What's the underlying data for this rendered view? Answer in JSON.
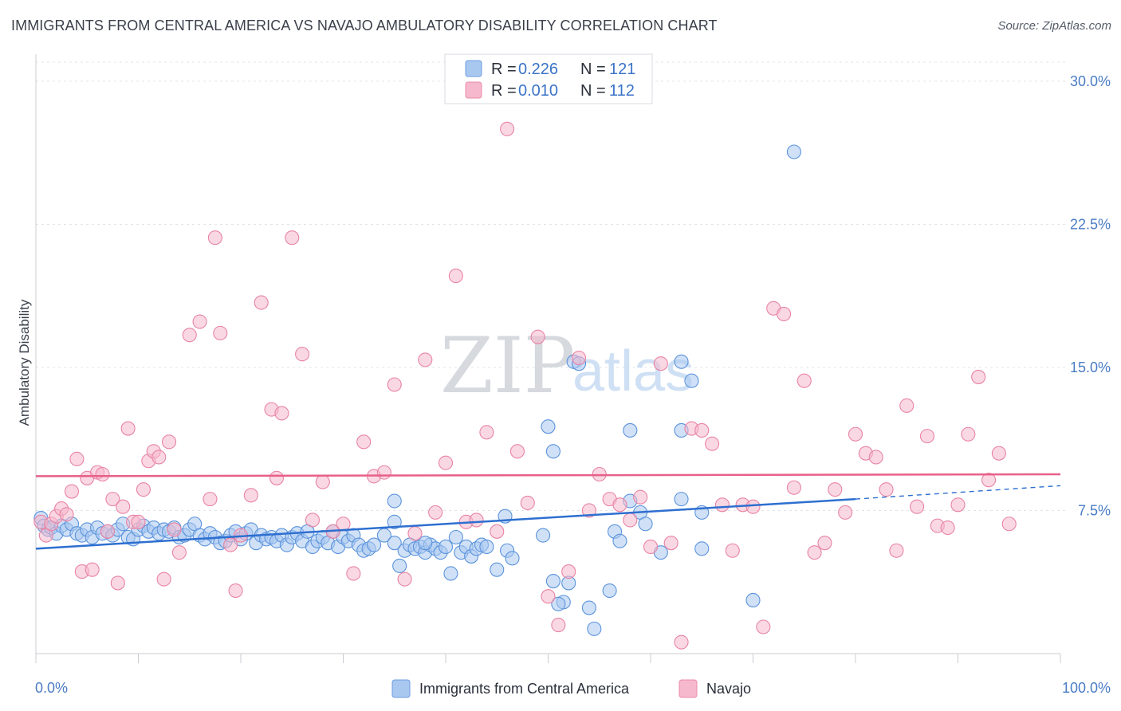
{
  "title": "IMMIGRANTS FROM CENTRAL AMERICA VS NAVAJO AMBULATORY DISABILITY CORRELATION CHART",
  "source": "Source: ZipAtlas.com",
  "watermark": {
    "zip": "ZIP",
    "atlas": "atlas"
  },
  "legend": {
    "rows": [
      {
        "r_label": "R =",
        "r_value": "0.226",
        "n_label": "N =",
        "n_value": "121",
        "color": "#a9c8f0"
      },
      {
        "r_label": "R =",
        "r_value": "0.010",
        "n_label": "N =",
        "n_value": "112",
        "color": "#f6b8cc"
      }
    ]
  },
  "bottom_legend": [
    {
      "label": "Immigrants from Central America",
      "color": "#a9c8f0"
    },
    {
      "label": "Navajo",
      "color": "#f6b8cc"
    }
  ],
  "chart_data": {
    "type": "scatter",
    "title": "IMMIGRANTS FROM CENTRAL AMERICA VS NAVAJO AMBULATORY DISABILITY CORRELATION CHART",
    "xlabel": "",
    "ylabel": "Ambulatory Disability",
    "xlim": [
      0,
      100
    ],
    "ylim": [
      0,
      31
    ],
    "x_ticks": [
      "0.0%",
      "100.0%"
    ],
    "y_ticks": [
      {
        "value": 7.5,
        "label": "7.5%"
      },
      {
        "value": 15.0,
        "label": "15.0%"
      },
      {
        "value": 22.5,
        "label": "22.5%"
      },
      {
        "value": 30.0,
        "label": "30.0%"
      }
    ],
    "grid": true,
    "legend_position": "top-center",
    "series": [
      {
        "name": "Immigrants from Central America",
        "color": "#5b93dc",
        "fill": "#a9c8f0",
        "trend": {
          "x": [
            0,
            80
          ],
          "y": [
            5.5,
            8.1
          ],
          "dashed_to": [
            100,
            8.8
          ],
          "color": "#2e6fd0"
        },
        "points": [
          [
            0.5,
            7.1
          ],
          [
            0.8,
            6.7
          ],
          [
            1.2,
            6.5
          ],
          [
            1.5,
            6.6
          ],
          [
            2,
            6.3
          ],
          [
            2.5,
            6.7
          ],
          [
            3,
            6.5
          ],
          [
            3.5,
            6.8
          ],
          [
            4,
            6.3
          ],
          [
            4.5,
            6.2
          ],
          [
            5,
            6.5
          ],
          [
            5.5,
            6.1
          ],
          [
            6,
            6.6
          ],
          [
            6.5,
            6.3
          ],
          [
            7,
            6.4
          ],
          [
            7.5,
            6.2
          ],
          [
            8,
            6.5
          ],
          [
            8.5,
            6.8
          ],
          [
            9,
            6.1
          ],
          [
            9.5,
            6.0
          ],
          [
            10,
            6.5
          ],
          [
            10.5,
            6.7
          ],
          [
            11,
            6.4
          ],
          [
            11.5,
            6.6
          ],
          [
            12,
            6.3
          ],
          [
            12.5,
            6.5
          ],
          [
            13,
            6.4
          ],
          [
            13.5,
            6.6
          ],
          [
            14,
            6.1
          ],
          [
            14.5,
            6.2
          ],
          [
            15,
            6.5
          ],
          [
            15.5,
            6.8
          ],
          [
            16,
            6.2
          ],
          [
            16.5,
            6.0
          ],
          [
            17,
            6.3
          ],
          [
            17.5,
            6.1
          ],
          [
            18,
            5.8
          ],
          [
            18.5,
            5.9
          ],
          [
            19,
            6.2
          ],
          [
            19.5,
            6.4
          ],
          [
            20,
            6.0
          ],
          [
            20.5,
            6.3
          ],
          [
            21,
            6.5
          ],
          [
            21.5,
            5.8
          ],
          [
            22,
            6.2
          ],
          [
            22.5,
            6.0
          ],
          [
            23,
            6.1
          ],
          [
            23.5,
            5.9
          ],
          [
            24,
            6.2
          ],
          [
            24.5,
            5.7
          ],
          [
            25,
            6.1
          ],
          [
            25.5,
            6.3
          ],
          [
            26,
            5.9
          ],
          [
            26.5,
            6.4
          ],
          [
            27,
            5.6
          ],
          [
            27.5,
            5.9
          ],
          [
            28,
            6.1
          ],
          [
            28.5,
            5.8
          ],
          [
            29,
            6.4
          ],
          [
            29.5,
            5.6
          ],
          [
            30,
            6.1
          ],
          [
            30.5,
            5.9
          ],
          [
            31,
            6.2
          ],
          [
            31.5,
            5.7
          ],
          [
            32,
            5.4
          ],
          [
            32.5,
            5.5
          ],
          [
            33,
            5.7
          ],
          [
            34,
            6.2
          ],
          [
            35,
            5.8
          ],
          [
            35.5,
            4.6
          ],
          [
            36,
            5.4
          ],
          [
            36.5,
            5.7
          ],
          [
            37,
            5.5
          ],
          [
            37.5,
            5.6
          ],
          [
            38,
            5.3
          ],
          [
            38.5,
            5.7
          ],
          [
            39,
            5.5
          ],
          [
            39.5,
            5.3
          ],
          [
            40,
            5.6
          ],
          [
            40.5,
            4.2
          ],
          [
            41,
            6.1
          ],
          [
            41.5,
            5.3
          ],
          [
            42,
            5.6
          ],
          [
            42.5,
            5.1
          ],
          [
            43,
            5.5
          ],
          [
            43.5,
            5.7
          ],
          [
            44,
            5.6
          ],
          [
            45,
            4.4
          ],
          [
            46,
            5.4
          ],
          [
            46.5,
            5.0
          ],
          [
            35,
            8.0
          ],
          [
            35,
            6.9
          ],
          [
            38,
            5.8
          ],
          [
            49.5,
            6.2
          ],
          [
            50.5,
            3.8
          ],
          [
            51.5,
            2.7
          ],
          [
            52,
            3.7
          ],
          [
            54,
            2.4
          ],
          [
            54.5,
            1.3
          ],
          [
            56,
            3.3
          ],
          [
            56.5,
            6.4
          ],
          [
            57,
            5.9
          ],
          [
            58,
            8.0
          ],
          [
            59,
            7.4
          ],
          [
            59.5,
            6.8
          ],
          [
            61,
            5.3
          ],
          [
            63,
            8.1
          ],
          [
            64,
            14.3
          ],
          [
            63,
            15.3
          ],
          [
            65,
            5.5
          ],
          [
            52.5,
            15.3
          ],
          [
            53,
            15.2
          ],
          [
            50,
            11.9
          ],
          [
            50.5,
            10.6
          ],
          [
            58,
            11.7
          ],
          [
            63,
            11.7
          ],
          [
            65,
            7.4
          ],
          [
            74,
            26.3
          ],
          [
            70,
            2.8
          ],
          [
            51,
            2.6
          ],
          [
            45.8,
            7.2
          ]
        ]
      },
      {
        "name": "Navajo",
        "color": "#e884a4",
        "fill": "#f6b8cc",
        "trend": {
          "x": [
            0,
            100
          ],
          "y": [
            9.3,
            9.4
          ],
          "color": "#e8608a"
        },
        "points": [
          [
            0.5,
            6.9
          ],
          [
            1,
            6.2
          ],
          [
            1.5,
            6.8
          ],
          [
            2,
            7.2
          ],
          [
            2.5,
            7.6
          ],
          [
            3,
            7.3
          ],
          [
            3.5,
            8.5
          ],
          [
            4,
            10.2
          ],
          [
            4.5,
            4.3
          ],
          [
            5,
            9.2
          ],
          [
            5.5,
            4.4
          ],
          [
            6,
            9.5
          ],
          [
            6.5,
            9.4
          ],
          [
            7,
            6.4
          ],
          [
            7.5,
            8.1
          ],
          [
            8,
            3.7
          ],
          [
            8.5,
            7.7
          ],
          [
            9,
            11.8
          ],
          [
            9.5,
            6.9
          ],
          [
            10,
            6.9
          ],
          [
            10.5,
            8.6
          ],
          [
            11,
            10.1
          ],
          [
            11.5,
            10.6
          ],
          [
            12,
            10.3
          ],
          [
            12.5,
            3.9
          ],
          [
            13,
            11.1
          ],
          [
            13.5,
            6.5
          ],
          [
            14,
            5.3
          ],
          [
            15,
            16.7
          ],
          [
            16,
            17.4
          ],
          [
            17,
            8.1
          ],
          [
            17.5,
            21.8
          ],
          [
            18,
            16.8
          ],
          [
            19,
            5.7
          ],
          [
            19.5,
            3.3
          ],
          [
            20,
            6.2
          ],
          [
            21,
            8.3
          ],
          [
            22,
            18.4
          ],
          [
            23,
            12.8
          ],
          [
            23.5,
            9.2
          ],
          [
            24,
            12.6
          ],
          [
            25,
            21.8
          ],
          [
            26,
            15.7
          ],
          [
            27,
            7.0
          ],
          [
            28,
            9.0
          ],
          [
            29,
            6.4
          ],
          [
            30,
            6.8
          ],
          [
            31,
            4.2
          ],
          [
            32,
            11.1
          ],
          [
            33,
            9.3
          ],
          [
            34,
            9.5
          ],
          [
            35,
            14.1
          ],
          [
            36,
            3.9
          ],
          [
            37,
            6.3
          ],
          [
            38,
            15.4
          ],
          [
            39,
            7.4
          ],
          [
            40,
            10.0
          ],
          [
            41,
            19.8
          ],
          [
            42,
            6.9
          ],
          [
            43,
            7.0
          ],
          [
            44,
            11.6
          ],
          [
            45,
            6.4
          ],
          [
            46,
            27.5
          ],
          [
            47,
            10.6
          ],
          [
            48,
            7.9
          ],
          [
            49,
            16.6
          ],
          [
            50,
            3.0
          ],
          [
            51,
            1.5
          ],
          [
            52,
            4.3
          ],
          [
            53,
            15.5
          ],
          [
            54,
            7.5
          ],
          [
            55,
            9.4
          ],
          [
            56,
            8.1
          ],
          [
            57,
            7.8
          ],
          [
            58,
            7.0
          ],
          [
            59,
            8.2
          ],
          [
            60,
            5.6
          ],
          [
            61,
            15.2
          ],
          [
            62,
            5.8
          ],
          [
            63,
            0.6
          ],
          [
            64,
            11.8
          ],
          [
            65,
            11.7
          ],
          [
            66,
            11.0
          ],
          [
            67,
            7.8
          ],
          [
            68,
            5.4
          ],
          [
            69,
            7.8
          ],
          [
            70,
            7.7
          ],
          [
            71,
            1.4
          ],
          [
            72,
            18.1
          ],
          [
            73,
            17.8
          ],
          [
            74,
            8.7
          ],
          [
            75,
            14.3
          ],
          [
            76,
            5.3
          ],
          [
            77,
            5.8
          ],
          [
            78,
            8.6
          ],
          [
            79,
            7.4
          ],
          [
            80,
            11.5
          ],
          [
            81,
            10.5
          ],
          [
            82,
            10.3
          ],
          [
            83,
            8.6
          ],
          [
            84,
            5.4
          ],
          [
            85,
            13.0
          ],
          [
            86,
            7.7
          ],
          [
            87,
            11.4
          ],
          [
            88,
            6.7
          ],
          [
            89,
            6.6
          ],
          [
            90,
            7.8
          ],
          [
            91,
            11.5
          ],
          [
            92,
            14.5
          ],
          [
            93,
            9.1
          ],
          [
            94,
            10.5
          ],
          [
            95,
            6.8
          ]
        ]
      }
    ]
  }
}
